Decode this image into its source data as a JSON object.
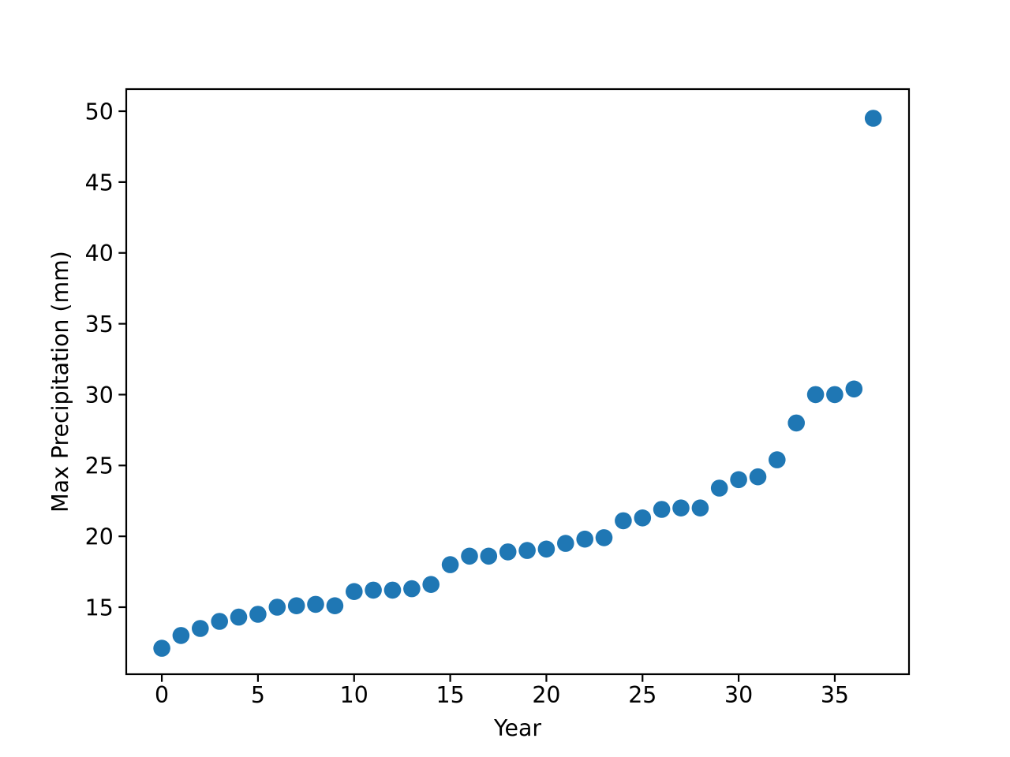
{
  "figure": {
    "background_color": "#ffffff",
    "spine_color": "#000000",
    "text_color": "#000000"
  },
  "chart_data": {
    "type": "scatter",
    "title": "",
    "xlabel": "Year",
    "ylabel": "Max Precipitation (mm)",
    "x": [
      0,
      1,
      2,
      3,
      4,
      5,
      6,
      7,
      8,
      9,
      10,
      11,
      12,
      13,
      14,
      15,
      16,
      17,
      18,
      19,
      20,
      21,
      22,
      23,
      24,
      25,
      26,
      27,
      28,
      29,
      30,
      31,
      32,
      33,
      34,
      35,
      36,
      37
    ],
    "series": [
      {
        "name": "Max Precipitation",
        "marker": "circle",
        "color": "#1f77b4",
        "marker_radius_px": 10.8,
        "values": [
          12.1,
          13.0,
          13.5,
          14.0,
          14.3,
          14.5,
          15.0,
          15.1,
          15.2,
          15.1,
          16.1,
          16.2,
          16.2,
          16.3,
          16.6,
          18.0,
          18.6,
          18.6,
          18.9,
          19.0,
          19.1,
          19.5,
          19.8,
          19.9,
          21.1,
          21.3,
          21.9,
          22.0,
          22.0,
          23.4,
          24.0,
          24.2,
          25.4,
          28.0,
          30.0,
          30.0,
          30.4,
          49.5
        ]
      }
    ],
    "xticks": [
      0,
      5,
      10,
      15,
      20,
      25,
      30,
      35
    ],
    "yticks": [
      15,
      20,
      25,
      30,
      35,
      40,
      45,
      50
    ],
    "xlim": [
      -1.85,
      38.86
    ],
    "ylim": [
      10.27,
      51.56
    ],
    "grid": false,
    "legend_visible": false
  }
}
